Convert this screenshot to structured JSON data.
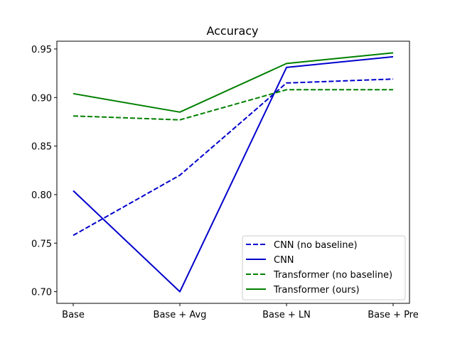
{
  "chart_data": {
    "type": "line",
    "title": "Accuracy",
    "xlabel": "",
    "ylabel": "",
    "categories": [
      "Base",
      "Base + Avg",
      "Base + LN",
      "Base + Pre"
    ],
    "ylim": [
      0.688,
      0.958
    ],
    "yticks": [
      "0.70",
      "0.75",
      "0.80",
      "0.85",
      "0.90",
      "0.95"
    ],
    "grid": false,
    "legend_position": "lower-right",
    "series": [
      {
        "name": "CNN (no baseline)",
        "values": [
          0.758,
          0.82,
          0.915,
          0.919
        ],
        "color": "#0000cc",
        "style": "dashed"
      },
      {
        "name": "CNN",
        "values": [
          0.804,
          0.7,
          0.931,
          0.942
        ],
        "color": "#0000cc",
        "style": "solid"
      },
      {
        "name": "Transformer (no baseline)",
        "values": [
          0.881,
          0.877,
          0.908,
          0.908
        ],
        "color": "#008000",
        "style": "dashed"
      },
      {
        "name": "Transformer (ours)",
        "values": [
          0.904,
          0.885,
          0.935,
          0.946
        ],
        "color": "#008000",
        "style": "solid"
      }
    ]
  }
}
